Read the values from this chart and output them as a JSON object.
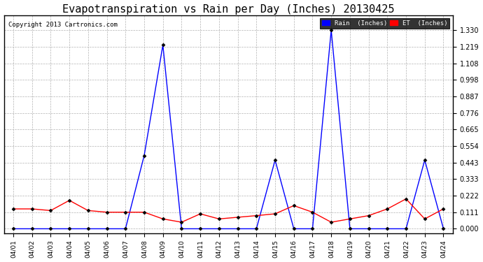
{
  "title": "Evapotranspiration vs Rain per Day (Inches) 20130425",
  "copyright": "Copyright 2013 Cartronics.com",
  "x_labels": [
    "04/01",
    "04/02",
    "04/03",
    "04/04",
    "04/05",
    "04/06",
    "04/07",
    "04/08",
    "04/09",
    "04/10",
    "04/11",
    "04/12",
    "04/13",
    "04/14",
    "04/15",
    "04/16",
    "04/17",
    "04/18",
    "04/19",
    "04/20",
    "04/21",
    "04/22",
    "04/23",
    "04/24"
  ],
  "rain_data": [
    0.0,
    0.0,
    0.0,
    0.0,
    0.0,
    0.0,
    0.0,
    0.49,
    1.23,
    0.0,
    0.0,
    0.0,
    0.0,
    0.0,
    0.46,
    0.0,
    0.0,
    1.33,
    0.0,
    0.0,
    0.0,
    0.0,
    0.46,
    0.0
  ],
  "et_data": [
    0.133,
    0.133,
    0.122,
    0.19,
    0.122,
    0.111,
    0.111,
    0.111,
    0.066,
    0.044,
    0.1,
    0.066,
    0.077,
    0.088,
    0.1,
    0.155,
    0.111,
    0.044,
    0.066,
    0.088,
    0.133,
    0.2,
    0.066,
    0.133
  ],
  "rain_color": "#0000ff",
  "et_color": "#ff0000",
  "bg_color": "#ffffff",
  "grid_color": "#aaaaaa",
  "title_fontsize": 11,
  "ytick_values": [
    0.0,
    0.111,
    0.222,
    0.333,
    0.443,
    0.554,
    0.665,
    0.776,
    0.887,
    0.998,
    1.108,
    1.219,
    1.33
  ],
  "ylim_min": -0.03,
  "ylim_max": 1.43,
  "legend_rain": "Rain  (Inches)"
}
